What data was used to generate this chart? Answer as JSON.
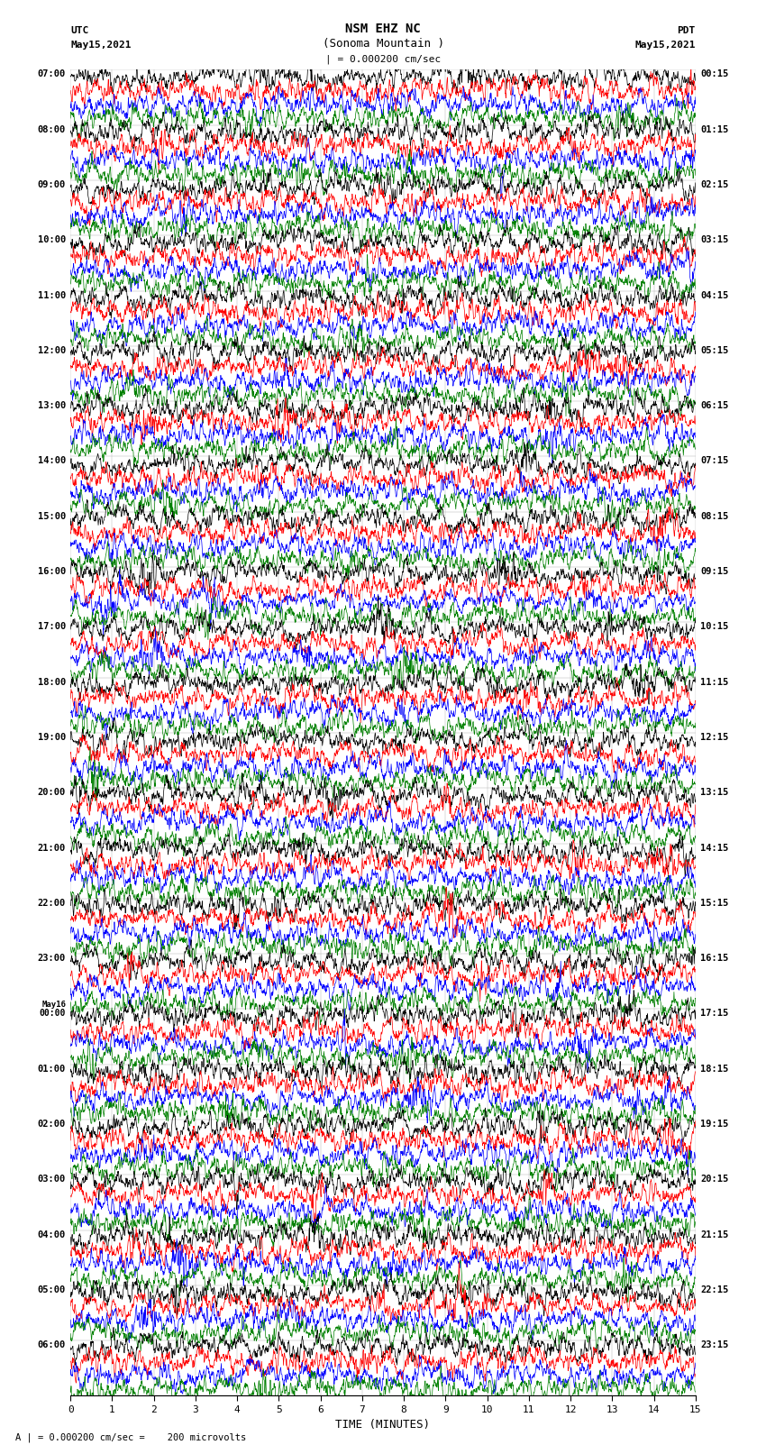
{
  "title_line1": "NSM EHZ NC",
  "title_line2": "(Sonoma Mountain )",
  "title_line3": "| = 0.000200 cm/sec",
  "left_header_line1": "UTC",
  "left_header_line2": "May15,2021",
  "right_header_line1": "PDT",
  "right_header_line2": "May15,2021",
  "xlabel": "TIME (MINUTES)",
  "footnote": "A | = 0.000200 cm/sec =    200 microvolts",
  "x_ticks": [
    0,
    1,
    2,
    3,
    4,
    5,
    6,
    7,
    8,
    9,
    10,
    11,
    12,
    13,
    14,
    15
  ],
  "colors": [
    "black",
    "red",
    "blue",
    "green"
  ],
  "utc_labels": [
    "07:00",
    "08:00",
    "09:00",
    "10:00",
    "11:00",
    "12:00",
    "13:00",
    "14:00",
    "15:00",
    "16:00",
    "17:00",
    "18:00",
    "19:00",
    "20:00",
    "21:00",
    "22:00",
    "23:00",
    "May16\n00:00",
    "01:00",
    "02:00",
    "03:00",
    "04:00",
    "05:00",
    "06:00"
  ],
  "pdt_labels": [
    "00:15",
    "01:15",
    "02:15",
    "03:15",
    "04:15",
    "05:15",
    "06:15",
    "07:15",
    "08:15",
    "09:15",
    "10:15",
    "11:15",
    "12:15",
    "13:15",
    "14:15",
    "15:15",
    "16:15",
    "17:15",
    "18:15",
    "19:15",
    "20:15",
    "21:15",
    "22:15",
    "23:15"
  ],
  "num_groups": 24,
  "traces_per_group": 4,
  "bg_color": "white",
  "fig_width": 8.5,
  "fig_height": 16.13,
  "dpi": 100
}
